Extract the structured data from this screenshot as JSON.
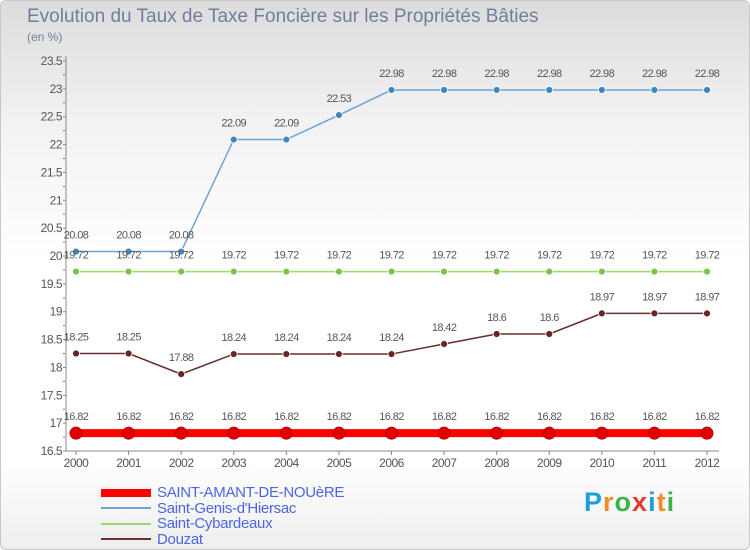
{
  "header": {
    "title": "Evolution du Taux de Taxe Foncière sur les Propriétés Bâties",
    "unit": "(en %)"
  },
  "logo": {
    "letters": [
      "P",
      "r",
      "o",
      "x",
      "i",
      "t",
      "i"
    ],
    "colors": [
      "#1e9fd8",
      "#f28c28",
      "#3db34a",
      "#e23b2e",
      "#1e9fd8",
      "#f28c28",
      "#3db34a"
    ]
  },
  "chart_data": {
    "type": "line",
    "title": "Evolution du Taux de Taxe Foncière sur les Propriétés Bâties",
    "ylabel": "(en %)",
    "xlabel": "",
    "ylim": [
      16.5,
      23.5
    ],
    "yticks": [
      "16.5",
      "17",
      "17.5",
      "18",
      "18.5",
      "19",
      "19.5",
      "20",
      "20.5",
      "21",
      "21.5",
      "22",
      "22.5",
      "23",
      "23.5"
    ],
    "x": [
      "2000",
      "2001",
      "2002",
      "2003",
      "2004",
      "2005",
      "2006",
      "2007",
      "2008",
      "2009",
      "2010",
      "2011",
      "2012"
    ],
    "grid": false,
    "legend_position": "bottom-left",
    "series": [
      {
        "name": "Saint-Genis-d'Hiersac",
        "color": "#6fa3d4",
        "marker_color": "#3f86c0",
        "values": [
          20.08,
          20.08,
          20.08,
          22.09,
          22.09,
          22.53,
          22.98,
          22.98,
          22.98,
          22.98,
          22.98,
          22.98,
          22.98
        ],
        "labels": [
          "20.08",
          "20.08",
          "20.08",
          "22.09",
          "22.09",
          "22.53",
          "22.98",
          "22.98",
          "22.98",
          "22.98",
          "22.98",
          "22.98",
          "22.98"
        ]
      },
      {
        "name": "Saint-Cybardeaux",
        "color": "#9fd86a",
        "marker_color": "#7cc44a",
        "values": [
          19.72,
          19.72,
          19.72,
          19.72,
          19.72,
          19.72,
          19.72,
          19.72,
          19.72,
          19.72,
          19.72,
          19.72,
          19.72
        ],
        "labels": [
          "19.72",
          "19.72",
          "19.72",
          "19.72",
          "19.72",
          "19.72",
          "19.72",
          "19.72",
          "19.72",
          "19.72",
          "19.72",
          "19.72",
          "19.72"
        ]
      },
      {
        "name": "Douzat",
        "color": "#6b2f2f",
        "marker_color": "#6b2424",
        "values": [
          18.25,
          18.25,
          17.88,
          18.24,
          18.24,
          18.24,
          18.24,
          18.42,
          18.6,
          18.6,
          18.97,
          18.97,
          18.97
        ],
        "labels": [
          "18.25",
          "18.25",
          "17.88",
          "18.24",
          "18.24",
          "18.24",
          "18.24",
          "18.42",
          "18.6",
          "18.6",
          "18.97",
          "18.97",
          "18.97"
        ]
      },
      {
        "name": "SAINT-AMANT-DE-NOUèRE",
        "color": "#ff0000",
        "marker_color": "#e00000",
        "highlight": true,
        "values": [
          16.82,
          16.82,
          16.82,
          16.82,
          16.82,
          16.82,
          16.82,
          16.82,
          16.82,
          16.82,
          16.82,
          16.82,
          16.82
        ],
        "labels": [
          "16.82",
          "16.82",
          "16.82",
          "16.82",
          "16.82",
          "16.82",
          "16.82",
          "16.82",
          "16.82",
          "16.82",
          "16.82",
          "16.82",
          "16.82"
        ]
      }
    ],
    "legend": [
      {
        "label": "SAINT-AMANT-DE-NOUèRE",
        "color": "#ff0000",
        "text_color": "#4a66e0"
      },
      {
        "label": "Saint-Genis-d'Hiersac",
        "color": "#6fa3d4",
        "text_color": "#4a66e0"
      },
      {
        "label": "Saint-Cybardeaux",
        "color": "#9fd86a",
        "text_color": "#4a66e0"
      },
      {
        "label": "Douzat",
        "color": "#6b2f2f",
        "text_color": "#4a66e0"
      }
    ]
  }
}
